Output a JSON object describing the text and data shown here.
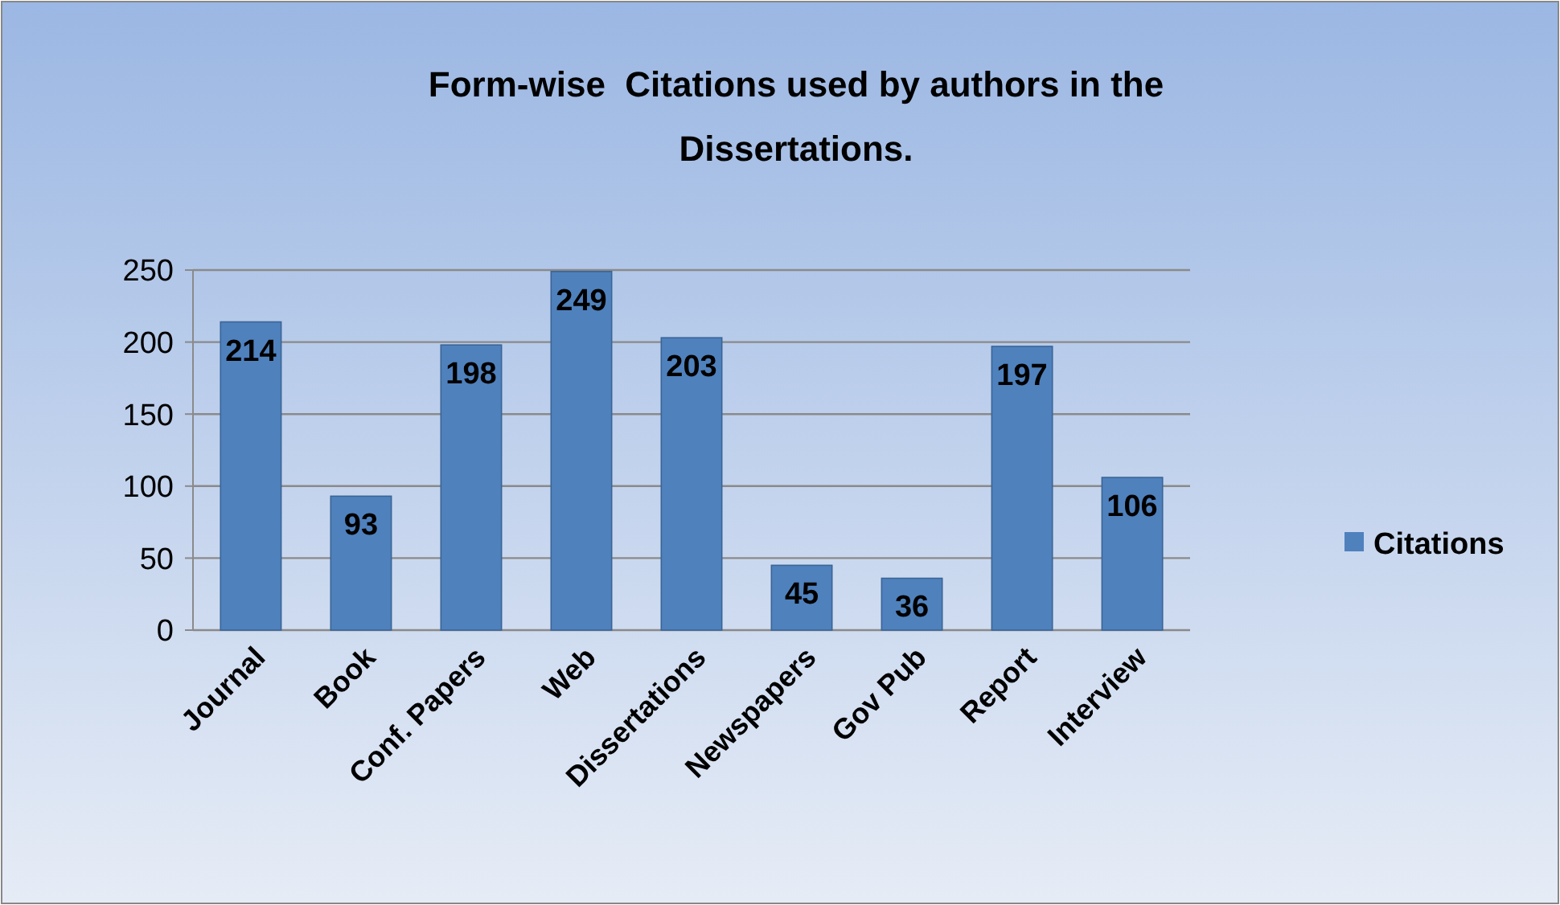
{
  "chart_data": {
    "type": "bar",
    "title": "Form-wise  Citations used by authors in the Dissertations.",
    "categories": [
      "Journal",
      "Book",
      "Conf. Papers",
      "Web",
      "Dissertations",
      "Newspapers",
      "Gov Pub",
      "Report",
      "Interview"
    ],
    "series": [
      {
        "name": "Citations",
        "color": "#4f81bd",
        "values": [
          214,
          93,
          198,
          249,
          203,
          45,
          36,
          197,
          106
        ]
      }
    ],
    "ylim": [
      0,
      250
    ],
    "yticks": [
      0,
      50,
      100,
      150,
      200,
      250
    ],
    "grid": "y",
    "legend": "right",
    "data_labels": true
  }
}
